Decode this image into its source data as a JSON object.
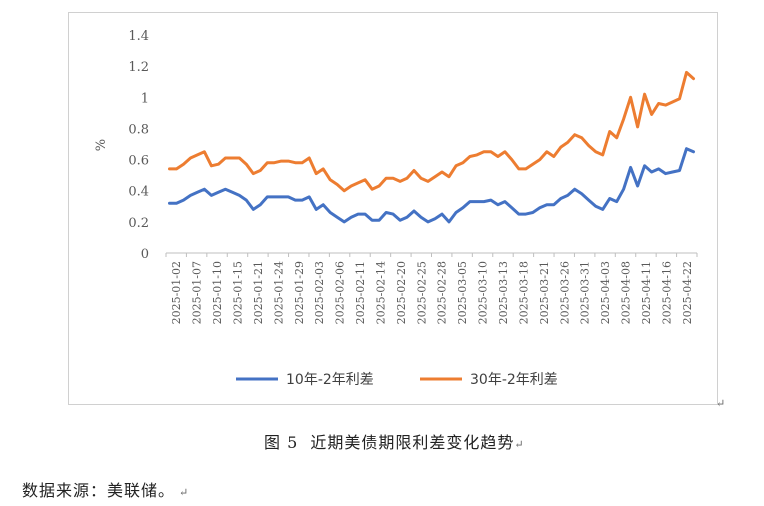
{
  "caption": {
    "prefix": "图 5",
    "text": "近期美债期限利差变化趋势"
  },
  "source": "数据来源：美联储。",
  "paragraph_mark": "↵",
  "chart_data": {
    "type": "line",
    "title": "",
    "ylabel": "%",
    "xlabel": "",
    "ylim": [
      0,
      1.4
    ],
    "yticks": [
      "1.4",
      "1.2",
      "1",
      "0.8",
      "0.6",
      "0.4",
      "0.2",
      "0"
    ],
    "ytick_values": [
      1.4,
      1.2,
      1.0,
      0.8,
      0.6,
      0.4,
      0.2,
      0
    ],
    "grid": false,
    "legend_position": "bottom",
    "x_tick_labels": [
      "2025-01-02",
      "2025-01-07",
      "2025-01-10",
      "2025-01-15",
      "2025-01-21",
      "2025-01-24",
      "2025-01-29",
      "2025-02-03",
      "2025-02-06",
      "2025-02-11",
      "2025-02-14",
      "2025-02-20",
      "2025-02-25",
      "2025-02-28",
      "2025-03-05",
      "2025-03-10",
      "2025-03-13",
      "2025-03-18",
      "2025-03-21",
      "2025-03-26",
      "2025-03-31",
      "2025-04-03",
      "2025-04-08",
      "2025-04-11",
      "2025-04-16",
      "2025-04-22"
    ],
    "series": [
      {
        "name": "10年-2年利差",
        "color": "#4472c4",
        "values": [
          0.32,
          0.32,
          0.34,
          0.37,
          0.39,
          0.41,
          0.37,
          0.39,
          0.41,
          0.39,
          0.37,
          0.34,
          0.28,
          0.31,
          0.36,
          0.36,
          0.36,
          0.36,
          0.34,
          0.34,
          0.36,
          0.28,
          0.31,
          0.26,
          0.23,
          0.2,
          0.23,
          0.25,
          0.25,
          0.21,
          0.21,
          0.26,
          0.25,
          0.21,
          0.23,
          0.27,
          0.23,
          0.2,
          0.22,
          0.25,
          0.2,
          0.26,
          0.29,
          0.33,
          0.33,
          0.33,
          0.34,
          0.31,
          0.33,
          0.29,
          0.25,
          0.25,
          0.26,
          0.29,
          0.31,
          0.31,
          0.35,
          0.37,
          0.41,
          0.38,
          0.34,
          0.3,
          0.28,
          0.35,
          0.33,
          0.41,
          0.55,
          0.43,
          0.56,
          0.52,
          0.54,
          0.51,
          0.52,
          0.53,
          0.67,
          0.65
        ]
      },
      {
        "name": "30年-2年利差",
        "color": "#ed7d31",
        "values": [
          0.54,
          0.54,
          0.57,
          0.61,
          0.63,
          0.65,
          0.56,
          0.57,
          0.61,
          0.61,
          0.61,
          0.57,
          0.51,
          0.53,
          0.58,
          0.58,
          0.59,
          0.59,
          0.58,
          0.58,
          0.61,
          0.51,
          0.54,
          0.47,
          0.44,
          0.4,
          0.43,
          0.45,
          0.47,
          0.41,
          0.43,
          0.48,
          0.48,
          0.46,
          0.48,
          0.53,
          0.48,
          0.46,
          0.49,
          0.52,
          0.49,
          0.56,
          0.58,
          0.62,
          0.63,
          0.65,
          0.65,
          0.62,
          0.65,
          0.6,
          0.54,
          0.54,
          0.57,
          0.6,
          0.65,
          0.62,
          0.68,
          0.71,
          0.76,
          0.74,
          0.69,
          0.65,
          0.63,
          0.78,
          0.74,
          0.86,
          1.0,
          0.81,
          1.02,
          0.89,
          0.96,
          0.95,
          0.97,
          0.99,
          1.16,
          1.12
        ]
      }
    ]
  }
}
